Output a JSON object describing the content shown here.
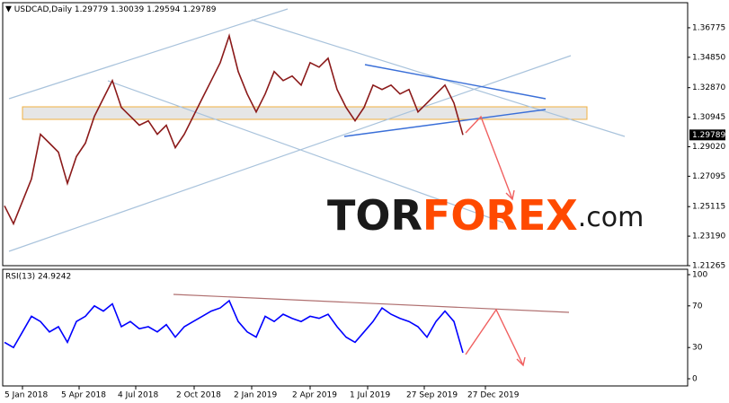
{
  "chart_data": [
    {
      "type": "line",
      "title": "USDCAD,Daily",
      "ohlc": [
        1.29779,
        1.30039,
        1.29594,
        1.29789
      ],
      "last_price": 1.29789,
      "xlim": [
        -4.4,
        148
      ],
      "ylim": [
        1.21265,
        1.3841
      ],
      "yticks": [
        1.36775,
        {
          "value": 1.3485,
          "label": "1.34850"
        },
        {
          "value": 1.3287,
          "label": "1.32870"
        },
        1.30945,
        {
          "value": 1.2902,
          "label": "1.29020"
        },
        1.27095,
        1.25115,
        {
          "value": 1.2319,
          "label": "1.23190"
        },
        1.21265
      ],
      "x": [
        -4,
        -2,
        0,
        2,
        4,
        6,
        8,
        10,
        12,
        14,
        16,
        18,
        20,
        22,
        24,
        26,
        28,
        30,
        32,
        34,
        36,
        38,
        40,
        42,
        44,
        46,
        48,
        50,
        52,
        54,
        56,
        58,
        60,
        62,
        64,
        66,
        68,
        70,
        72,
        74,
        76,
        78,
        80,
        82,
        84,
        86,
        88,
        90,
        92,
        94,
        96,
        98
      ],
      "series": [
        {
          "color": "#8b1a1a",
          "values": [
            1.2517,
            1.24,
            1.2546,
            1.2692,
            1.2983,
            1.2925,
            1.2867,
            1.2663,
            1.2838,
            1.2925,
            1.31,
            1.3217,
            1.3333,
            1.3158,
            1.31,
            1.3042,
            1.3071,
            1.2983,
            1.3042,
            1.2896,
            1.2983,
            1.31,
            1.3217,
            1.3333,
            1.345,
            1.3625,
            1.3392,
            1.3246,
            1.3129,
            1.3246,
            1.3392,
            1.3333,
            1.3363,
            1.3304,
            1.345,
            1.3421,
            1.3479,
            1.3275,
            1.3158,
            1.3071,
            1.3158,
            1.3304,
            1.3275,
            1.3304,
            1.3246,
            1.3275,
            1.3129,
            1.3187,
            1.3246,
            1.3304,
            1.3187,
            1.2979
          ]
        }
      ]
    },
    {
      "type": "line",
      "title": "RSI(13) 24.9242",
      "xlim": [
        -4.4,
        148
      ],
      "ylim": [
        0,
        100
      ],
      "yticks": [
        100,
        70,
        30,
        0
      ],
      "xticks": [
        {
          "value": 0,
          "label": "5 Jan 2018"
        },
        {
          "value": 12.6,
          "label": "5 Apr 2018"
        },
        {
          "value": 25.2,
          "label": "4 Jul 2018"
        },
        {
          "value": 38.2,
          "label": "2 Oct 2018"
        },
        {
          "value": 51,
          "label": "2 Jan 2019"
        },
        {
          "value": 64,
          "label": "2 Apr 2019"
        },
        {
          "value": 76.8,
          "label": "1 Jul 2019"
        },
        {
          "value": 89.4,
          "label": "27 Sep 2019"
        },
        {
          "value": 103,
          "label": "27 Dec 2019"
        }
      ],
      "x": [
        -4,
        -2,
        0,
        2,
        4,
        6,
        8,
        10,
        12,
        14,
        16,
        18,
        20,
        22,
        24,
        26,
        28,
        30,
        32,
        34,
        36,
        38,
        40,
        42,
        44,
        46,
        48,
        50,
        52,
        54,
        56,
        58,
        60,
        62,
        64,
        66,
        68,
        70,
        72,
        74,
        76,
        78,
        80,
        82,
        84,
        86,
        88,
        90,
        92,
        94,
        96,
        98
      ],
      "series": [
        {
          "color": "#0000ff",
          "values": [
            35,
            30,
            45,
            60,
            55,
            45,
            50,
            35,
            55,
            60,
            70,
            65,
            72,
            50,
            55,
            48,
            50,
            45,
            52,
            40,
            50,
            55,
            60,
            65,
            68,
            75,
            55,
            45,
            40,
            60,
            55,
            62,
            58,
            55,
            60,
            58,
            62,
            50,
            40,
            35,
            45,
            55,
            68,
            62,
            58,
            55,
            50,
            40,
            55,
            65,
            55,
            25
          ]
        }
      ]
    }
  ],
  "watermark": {
    "parts": [
      "TOR",
      "FOREX",
      ".com"
    ]
  }
}
